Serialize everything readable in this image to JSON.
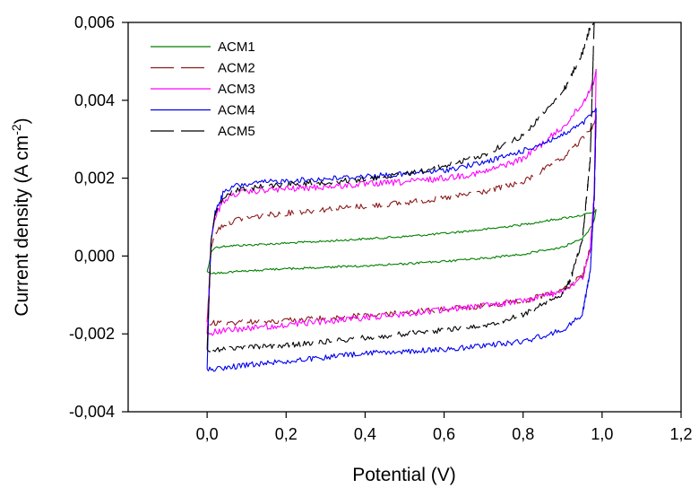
{
  "chart_data": {
    "type": "line",
    "title": "",
    "xlabel": "Potential (V)",
    "ylabel": {
      "main": "Current density (A cm",
      "sup": "-2",
      "close": ")"
    },
    "xlim": [
      -0.2,
      1.2
    ],
    "ylim": [
      -0.004,
      0.006
    ],
    "x_ticks": [
      {
        "value": 0.0,
        "label": "0,0"
      },
      {
        "value": 0.2,
        "label": "0,2"
      },
      {
        "value": 0.4,
        "label": "0,4"
      },
      {
        "value": 0.6,
        "label": "0,6"
      },
      {
        "value": 0.8,
        "label": "0,8"
      },
      {
        "value": 1.0,
        "label": "1,0"
      },
      {
        "value": 1.2,
        "label": "1,2"
      }
    ],
    "y_ticks": [
      {
        "value": -0.004,
        "label": "-0,004"
      },
      {
        "value": -0.002,
        "label": "-0,002"
      },
      {
        "value": 0.0,
        "label": "0,000"
      },
      {
        "value": 0.002,
        "label": "0,002"
      },
      {
        "value": 0.004,
        "label": "0,004"
      },
      {
        "value": 0.006,
        "label": "0,006"
      }
    ],
    "grid": false,
    "legend_position": "top-left",
    "series": [
      {
        "name": "ACM1",
        "color": "#008000",
        "dash": "solid",
        "forward": [
          [
            0.0,
            -0.0004
          ],
          [
            0.005,
            -0.0002
          ],
          [
            0.01,
            0.0001
          ],
          [
            0.02,
            0.00022
          ],
          [
            0.05,
            0.00026
          ],
          [
            0.1,
            0.00028
          ],
          [
            0.2,
            0.00033
          ],
          [
            0.3,
            0.00038
          ],
          [
            0.4,
            0.00044
          ],
          [
            0.5,
            0.0005
          ],
          [
            0.6,
            0.00058
          ],
          [
            0.7,
            0.00068
          ],
          [
            0.8,
            0.00081
          ],
          [
            0.9,
            0.00097
          ],
          [
            0.95,
            0.00105
          ],
          [
            0.98,
            0.00112
          ],
          [
            0.985,
            0.0012
          ]
        ],
        "reverse": [
          [
            0.985,
            0.0012
          ],
          [
            0.98,
            0.0009
          ],
          [
            0.97,
            0.0007
          ],
          [
            0.95,
            0.00045
          ],
          [
            0.9,
            0.00023
          ],
          [
            0.8,
            5e-05
          ],
          [
            0.7,
            -6e-05
          ],
          [
            0.6,
            -0.00014
          ],
          [
            0.5,
            -0.0002
          ],
          [
            0.4,
            -0.00025
          ],
          [
            0.3,
            -0.00029
          ],
          [
            0.2,
            -0.00033
          ],
          [
            0.1,
            -0.00038
          ],
          [
            0.05,
            -0.00042
          ],
          [
            0.01,
            -0.00045
          ],
          [
            0.0,
            -0.0004
          ]
        ]
      },
      {
        "name": "ACM2",
        "color": "#8b1a1a",
        "dash": "long",
        "forward": [
          [
            0.0,
            -0.0017
          ],
          [
            0.005,
            -0.0008
          ],
          [
            0.01,
            0.0002
          ],
          [
            0.02,
            0.0006
          ],
          [
            0.04,
            0.0008
          ],
          [
            0.08,
            0.00095
          ],
          [
            0.15,
            0.00105
          ],
          [
            0.2,
            0.0011
          ],
          [
            0.3,
            0.0012
          ],
          [
            0.4,
            0.00128
          ],
          [
            0.5,
            0.00137
          ],
          [
            0.6,
            0.00148
          ],
          [
            0.7,
            0.00165
          ],
          [
            0.8,
            0.0019
          ],
          [
            0.9,
            0.0025
          ],
          [
            0.95,
            0.003
          ],
          [
            0.98,
            0.0034
          ],
          [
            0.985,
            0.0036
          ]
        ],
        "reverse": [
          [
            0.985,
            0.0036
          ],
          [
            0.98,
            0.0012
          ],
          [
            0.97,
            0.0002
          ],
          [
            0.95,
            -0.0005
          ],
          [
            0.9,
            -0.0009
          ],
          [
            0.8,
            -0.00115
          ],
          [
            0.7,
            -0.00128
          ],
          [
            0.6,
            -0.00137
          ],
          [
            0.5,
            -0.00145
          ],
          [
            0.4,
            -0.00153
          ],
          [
            0.3,
            -0.0016
          ],
          [
            0.2,
            -0.00165
          ],
          [
            0.1,
            -0.0017
          ],
          [
            0.02,
            -0.00172
          ],
          [
            0.0,
            -0.0017
          ]
        ]
      },
      {
        "name": "ACM3",
        "color": "#ff00ff",
        "dash": "solid",
        "forward": [
          [
            0.0,
            -0.002
          ],
          [
            0.005,
            -0.0008
          ],
          [
            0.01,
            0.0004
          ],
          [
            0.02,
            0.001
          ],
          [
            0.04,
            0.0014
          ],
          [
            0.07,
            0.0016
          ],
          [
            0.15,
            0.0017
          ],
          [
            0.2,
            0.00172
          ],
          [
            0.3,
            0.00178
          ],
          [
            0.4,
            0.00184
          ],
          [
            0.5,
            0.0019
          ],
          [
            0.6,
            0.002
          ],
          [
            0.7,
            0.00215
          ],
          [
            0.8,
            0.0025
          ],
          [
            0.9,
            0.0033
          ],
          [
            0.95,
            0.0039
          ],
          [
            0.98,
            0.0045
          ],
          [
            0.985,
            0.0048
          ]
        ],
        "reverse": [
          [
            0.985,
            0.0048
          ],
          [
            0.98,
            0.0016
          ],
          [
            0.97,
            0.0002
          ],
          [
            0.95,
            -0.0006
          ],
          [
            0.9,
            -0.0009
          ],
          [
            0.8,
            -0.00115
          ],
          [
            0.7,
            -0.00128
          ],
          [
            0.6,
            -0.00138
          ],
          [
            0.5,
            -0.00148
          ],
          [
            0.4,
            -0.00158
          ],
          [
            0.3,
            -0.00168
          ],
          [
            0.2,
            -0.00177
          ],
          [
            0.1,
            -0.00185
          ],
          [
            0.02,
            -0.00195
          ],
          [
            0.0,
            -0.002
          ]
        ]
      },
      {
        "name": "ACM4",
        "color": "#0000ee",
        "dash": "solid",
        "forward": [
          [
            0.0,
            -0.0029
          ],
          [
            0.005,
            -0.001
          ],
          [
            0.01,
            0.0004
          ],
          [
            0.02,
            0.0011
          ],
          [
            0.04,
            0.0016
          ],
          [
            0.07,
            0.0018
          ],
          [
            0.15,
            0.0019
          ],
          [
            0.2,
            0.00193
          ],
          [
            0.3,
            0.00198
          ],
          [
            0.4,
            0.00205
          ],
          [
            0.5,
            0.0021
          ],
          [
            0.6,
            0.0022
          ],
          [
            0.7,
            0.0024
          ],
          [
            0.8,
            0.0027
          ],
          [
            0.9,
            0.0031
          ],
          [
            0.95,
            0.0034
          ],
          [
            0.98,
            0.0037
          ],
          [
            0.985,
            0.0038
          ]
        ],
        "reverse": [
          [
            0.985,
            0.0038
          ],
          [
            0.98,
            0.0015
          ],
          [
            0.97,
            -0.0004
          ],
          [
            0.95,
            -0.0015
          ],
          [
            0.9,
            -0.0019
          ],
          [
            0.8,
            -0.0022
          ],
          [
            0.7,
            -0.0023
          ],
          [
            0.6,
            -0.0024
          ],
          [
            0.5,
            -0.00245
          ],
          [
            0.4,
            -0.0025
          ],
          [
            0.3,
            -0.0026
          ],
          [
            0.2,
            -0.0027
          ],
          [
            0.1,
            -0.0028
          ],
          [
            0.02,
            -0.0029
          ],
          [
            0.0,
            -0.0029
          ]
        ]
      },
      {
        "name": "ACM5",
        "color": "#000000",
        "dash": "long",
        "forward": [
          [
            0.0,
            -0.0024
          ],
          [
            0.005,
            -0.001
          ],
          [
            0.01,
            0.0004
          ],
          [
            0.02,
            0.0011
          ],
          [
            0.04,
            0.0015
          ],
          [
            0.07,
            0.0017
          ],
          [
            0.15,
            0.0018
          ],
          [
            0.2,
            0.00185
          ],
          [
            0.3,
            0.0019
          ],
          [
            0.4,
            0.00197
          ],
          [
            0.5,
            0.0021
          ],
          [
            0.6,
            0.0023
          ],
          [
            0.7,
            0.0026
          ],
          [
            0.8,
            0.0031
          ],
          [
            0.9,
            0.0042
          ],
          [
            0.95,
            0.0052
          ],
          [
            0.97,
            0.0059
          ],
          [
            0.98,
            0.006
          ]
        ],
        "reverse": [
          [
            0.98,
            0.006
          ],
          [
            0.97,
            0.0025
          ],
          [
            0.95,
            0.0004
          ],
          [
            0.92,
            -0.0006
          ],
          [
            0.9,
            -0.001
          ],
          [
            0.8,
            -0.0015
          ],
          [
            0.7,
            -0.0018
          ],
          [
            0.6,
            -0.0019
          ],
          [
            0.5,
            -0.002
          ],
          [
            0.4,
            -0.0021
          ],
          [
            0.3,
            -0.0022
          ],
          [
            0.2,
            -0.0023
          ],
          [
            0.1,
            -0.00235
          ],
          [
            0.02,
            -0.0024
          ],
          [
            0.0,
            -0.0024
          ]
        ]
      }
    ]
  }
}
